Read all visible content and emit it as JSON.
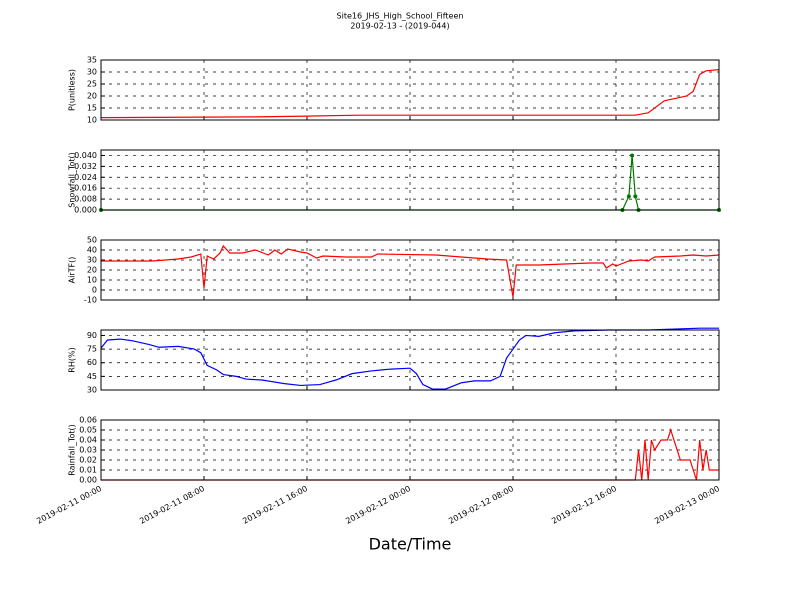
{
  "title": "Site16_JHS_High_School_Fifteen",
  "subtitle": "2019-02-13 - (2019-044)",
  "xlabel": "Date/Time",
  "chart_data": [
    {
      "type": "line",
      "ylabel": "P(unitless)",
      "ylim": [
        10,
        35
      ],
      "yticks": [
        10,
        15,
        20,
        25,
        30,
        35
      ],
      "grid": true,
      "x": [
        "2019-02-11 00:00",
        "2019-02-11 12:00",
        "2019-02-11 16:00",
        "2019-02-11 20:00",
        "2019-02-11 22:00",
        "2019-02-12 12:00",
        "2019-02-12 17:30",
        "2019-02-12 18:30",
        "2019-02-12 19:45",
        "2019-02-12 21:30",
        "2019-02-12 22:00",
        "2019-02-12 22:30",
        "2019-02-12 23:00",
        "2019-02-13 00:00"
      ],
      "series": [
        {
          "color": "#ff0000",
          "values": [
            11,
            11.3,
            11.6,
            12,
            12,
            12,
            12,
            13,
            18,
            20,
            22,
            29,
            30.5,
            31
          ]
        }
      ]
    },
    {
      "type": "line",
      "ylabel": "Snowfall_Tot()",
      "ylim": [
        0,
        0.044
      ],
      "grid": true,
      "markers": true,
      "yticks": [
        {
          "value": 0,
          "label": "0.000"
        },
        {
          "value": 0.008,
          "label": "0.008"
        },
        {
          "value": 0.016,
          "label": "0.016"
        },
        {
          "value": 0.024,
          "label": "0.024"
        },
        {
          "value": 0.032,
          "label": "0.032"
        },
        {
          "value": 0.04,
          "label": "0.040"
        }
      ],
      "x": [
        "2019-02-11 00:00",
        "2019-02-12 16:30",
        "2019-02-12 17:00",
        "2019-02-12 17:15",
        "2019-02-12 17:30",
        "2019-02-12 17:45",
        "2019-02-13 00:00"
      ],
      "series": [
        {
          "color": "#007700",
          "values": [
            0,
            0,
            0.01,
            0.04,
            0.01,
            0,
            0
          ]
        }
      ]
    },
    {
      "type": "line",
      "ylabel": "AirTF()",
      "ylim": [
        -10,
        50
      ],
      "yticks": [
        -10,
        0,
        10,
        20,
        30,
        40,
        50
      ],
      "grid": true,
      "x": [
        "2019-02-11 00:00",
        "2019-02-11 04:00",
        "2019-02-11 06:00",
        "2019-02-11 07:00",
        "2019-02-11 07:45",
        "2019-02-11 08:00",
        "2019-02-11 08:15",
        "2019-02-11 08:45",
        "2019-02-11 09:15",
        "2019-02-11 09:30",
        "2019-02-11 10:00",
        "2019-02-11 11:00",
        "2019-02-11 12:00",
        "2019-02-11 13:00",
        "2019-02-11 13:30",
        "2019-02-11 14:00",
        "2019-02-11 14:30",
        "2019-02-11 15:30",
        "2019-02-11 16:00",
        "2019-02-11 16:45",
        "2019-02-11 17:15",
        "2019-02-11 19:00",
        "2019-02-11 21:00",
        "2019-02-11 21:30",
        "2019-02-12 02:00",
        "2019-02-12 06:00",
        "2019-02-12 07:30",
        "2019-02-12 08:00",
        "2019-02-12 08:15",
        "2019-02-12 10:00",
        "2019-02-12 12:00",
        "2019-02-12 14:00",
        "2019-02-12 15:00",
        "2019-02-12 15:15",
        "2019-02-12 15:45",
        "2019-02-12 16:00",
        "2019-02-12 17:00",
        "2019-02-12 18:00",
        "2019-02-12 18:30",
        "2019-02-12 19:00",
        "2019-02-12 21:00",
        "2019-02-12 22:00",
        "2019-02-12 23:00",
        "2019-02-13 00:00"
      ],
      "series": [
        {
          "color": "#ff0000",
          "values": [
            29,
            29,
            31,
            33,
            36,
            2,
            34,
            31,
            37,
            44,
            37,
            37,
            40,
            35,
            40,
            36,
            41,
            38,
            37,
            32,
            34,
            33,
            33,
            36,
            35,
            31,
            30,
            -7,
            25,
            25,
            26,
            27,
            27,
            22,
            26,
            24,
            29,
            30,
            29,
            33,
            34,
            35,
            34,
            35
          ]
        }
      ]
    },
    {
      "type": "line",
      "ylabel": "RH(%)",
      "ylim": [
        30,
        96
      ],
      "yticks": [
        30,
        45,
        60,
        75,
        90
      ],
      "grid": true,
      "x": [
        "2019-02-11 00:00",
        "2019-02-11 00:30",
        "2019-02-11 01:30",
        "2019-02-11 02:30",
        "2019-02-11 03:45",
        "2019-02-11 04:30",
        "2019-02-11 06:00",
        "2019-02-11 07:15",
        "2019-02-11 07:45",
        "2019-02-11 08:15",
        "2019-02-11 09:00",
        "2019-02-11 09:30",
        "2019-02-11 10:30",
        "2019-02-11 11:15",
        "2019-02-11 12:30",
        "2019-02-11 14:15",
        "2019-02-11 15:30",
        "2019-02-11 17:00",
        "2019-02-11 18:15",
        "2019-02-11 19:30",
        "2019-02-11 21:00",
        "2019-02-11 22:30",
        "2019-02-12 00:00",
        "2019-02-12 00:30",
        "2019-02-12 01:00",
        "2019-02-12 01:45",
        "2019-02-12 02:45",
        "2019-02-12 04:00",
        "2019-02-12 05:00",
        "2019-02-12 06:15",
        "2019-02-12 07:00",
        "2019-02-12 07:30",
        "2019-02-12 08:00",
        "2019-02-12 08:30",
        "2019-02-12 09:00",
        "2019-02-12 10:00",
        "2019-02-12 11:15",
        "2019-02-12 12:45",
        "2019-02-12 15:30",
        "2019-02-12 17:00",
        "2019-02-12 18:30",
        "2019-02-12 22:30",
        "2019-02-13 00:00"
      ],
      "series": [
        {
          "color": "#0000ff",
          "values": [
            76,
            85,
            86,
            84,
            80,
            77,
            78,
            75,
            71,
            57,
            52,
            47,
            45,
            42,
            41,
            37,
            35,
            36,
            41,
            48,
            51,
            53,
            54,
            48,
            36,
            31,
            31,
            38,
            40,
            40,
            45,
            65,
            75,
            85,
            90,
            89,
            93,
            95,
            96,
            96,
            96,
            98,
            98
          ]
        }
      ]
    },
    {
      "type": "line",
      "ylabel": "Rainfall_Tot()",
      "ylim": [
        0,
        0.06
      ],
      "grid": true,
      "yticks": [
        {
          "value": 0,
          "label": "0.00"
        },
        {
          "value": 0.01,
          "label": "0.01"
        },
        {
          "value": 0.02,
          "label": "0.02"
        },
        {
          "value": 0.03,
          "label": "0.03"
        },
        {
          "value": 0.04,
          "label": "0.04"
        },
        {
          "value": 0.05,
          "label": "0.05"
        },
        {
          "value": 0.06,
          "label": "0.06"
        }
      ],
      "xlim": [
        "2019-02-11 00:00",
        "2019-02-13 00:00"
      ],
      "xticks": [
        "2019-02-11 00:00",
        "2019-02-11 08:00",
        "2019-02-11 16:00",
        "2019-02-12 00:00",
        "2019-02-12 08:00",
        "2019-02-12 16:00",
        "2019-02-13 00:00"
      ],
      "x": [
        "2019-02-11 00:00",
        "2019-02-12 17:30",
        "2019-02-12 17:45",
        "2019-02-12 18:00",
        "2019-02-12 18:15",
        "2019-02-12 18:30",
        "2019-02-12 18:45",
        "2019-02-12 19:00",
        "2019-02-12 19:30",
        "2019-02-12 20:00",
        "2019-02-12 20:15",
        "2019-02-12 21:00",
        "2019-02-12 21:45",
        "2019-02-12 22:15",
        "2019-02-12 22:30",
        "2019-02-12 22:45",
        "2019-02-12 23:00",
        "2019-02-12 23:15",
        "2019-02-13 00:00"
      ],
      "series": [
        {
          "color": "#ff0000",
          "values": [
            0,
            0,
            0.03,
            0,
            0.04,
            0,
            0.04,
            0.03,
            0.04,
            0.04,
            0.05,
            0.02,
            0.02,
            0,
            0.04,
            0.01,
            0.03,
            0.01,
            0.01
          ]
        }
      ]
    }
  ]
}
